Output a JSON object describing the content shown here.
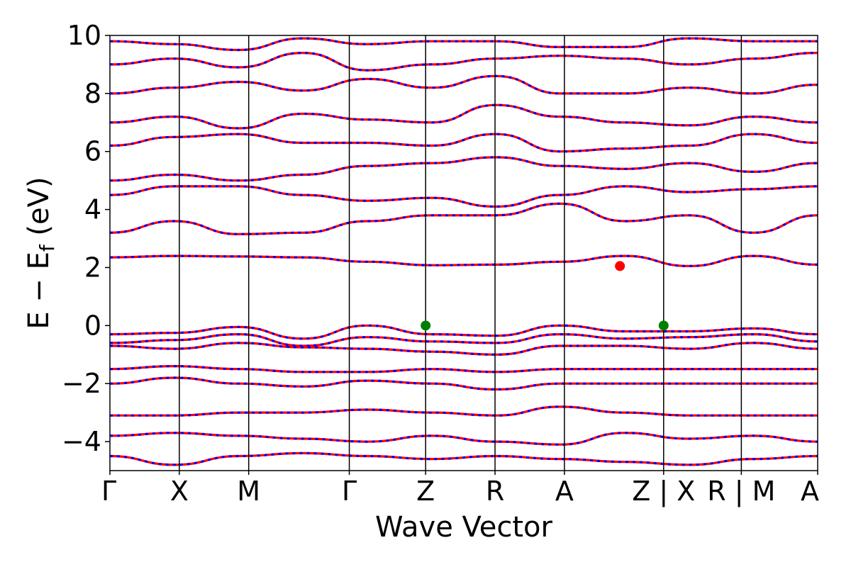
{
  "chart_data": {
    "type": "line",
    "xlabel": "Wave Vector",
    "ylabel_main": "E − E",
    "ylabel_sub": "f",
    "ylabel_unit": " (eV)",
    "ylim": [
      -5,
      10
    ],
    "yticks": [
      -4,
      -2,
      0,
      2,
      4,
      6,
      8,
      10
    ],
    "ytick_labels": [
      "−4",
      "−2",
      "0",
      "2",
      "4",
      "6",
      "8",
      "10"
    ],
    "kpath_positions": [
      0,
      1,
      2,
      3.45,
      4.55,
      5.55,
      6.55,
      7.98,
      9.1,
      10.2
    ],
    "kpath_labels": [
      "Γ",
      "X",
      "M",
      "Γ",
      "Z",
      "R",
      "A",
      "Z | X",
      "R | M",
      "A"
    ],
    "series_colors": {
      "spin_up": "#ff0000",
      "spin_down": "#0000ff",
      "vbm_marker": "#008000",
      "cbm_marker": "#ff0000"
    },
    "series": [
      {
        "values": [
          2.35,
          2.4,
          2.38,
          2.35,
          2.2,
          2.08,
          2.1,
          2.2,
          2.4,
          2.05,
          2.4,
          2.1
        ]
      },
      {
        "values": [
          -0.3,
          -0.25,
          -0.05,
          -0.45,
          0.0,
          -0.3,
          -0.35,
          0.0,
          -0.2,
          -0.2,
          -0.1,
          -0.3
        ]
      },
      {
        "values": [
          -0.6,
          -0.5,
          -0.3,
          -0.7,
          -0.4,
          -0.55,
          -0.6,
          -0.3,
          -0.45,
          -0.4,
          -0.3,
          -0.55
        ]
      },
      {
        "values": [
          -0.7,
          -0.8,
          -0.6,
          -0.75,
          -0.8,
          -0.9,
          -1.0,
          -0.7,
          -0.7,
          -0.8,
          -0.6,
          -0.8
        ]
      },
      {
        "values": [
          -1.5,
          -1.4,
          -1.5,
          -1.6,
          -1.6,
          -1.5,
          -1.6,
          -1.5,
          -1.5,
          -1.5,
          -1.5,
          -1.5
        ]
      },
      {
        "values": [
          -2.0,
          -1.8,
          -2.0,
          -2.1,
          -1.9,
          -2.0,
          -2.2,
          -2.0,
          -2.0,
          -2.0,
          -2.0,
          -2.0
        ]
      },
      {
        "values": [
          -3.1,
          -3.1,
          -3.0,
          -3.0,
          -2.9,
          -3.0,
          -3.1,
          -2.8,
          -3.0,
          -3.1,
          -3.1,
          -3.1
        ]
      },
      {
        "values": [
          -3.8,
          -3.7,
          -3.8,
          -3.9,
          -4.0,
          -3.8,
          -4.0,
          -4.1,
          -3.7,
          -3.9,
          -3.8,
          -4.0
        ]
      },
      {
        "values": [
          -4.5,
          -4.8,
          -4.5,
          -4.4,
          -4.5,
          -4.6,
          -4.5,
          -4.6,
          -4.7,
          -4.8,
          -4.6,
          -4.5
        ]
      },
      {
        "values": [
          3.2,
          3.6,
          3.15,
          3.2,
          3.6,
          3.8,
          3.8,
          4.2,
          3.6,
          3.8,
          3.2,
          3.8
        ]
      },
      {
        "values": [
          4.5,
          4.8,
          4.8,
          4.5,
          4.3,
          4.4,
          4.1,
          4.5,
          4.8,
          4.6,
          4.7,
          4.8
        ]
      },
      {
        "values": [
          5.0,
          5.2,
          5.0,
          5.2,
          5.5,
          5.6,
          5.8,
          5.5,
          5.4,
          5.6,
          5.3,
          5.6
        ]
      },
      {
        "values": [
          6.2,
          6.5,
          6.6,
          6.3,
          6.3,
          6.2,
          6.6,
          6.0,
          6.1,
          6.2,
          6.6,
          6.3
        ]
      },
      {
        "values": [
          7.0,
          7.2,
          6.8,
          7.3,
          7.1,
          7.0,
          7.6,
          7.2,
          7.0,
          6.9,
          7.2,
          7.0
        ]
      },
      {
        "values": [
          8.0,
          8.2,
          8.4,
          8.1,
          8.5,
          8.2,
          8.6,
          8.0,
          8.0,
          8.2,
          8.0,
          8.3
        ]
      },
      {
        "values": [
          9.0,
          9.2,
          8.9,
          9.4,
          8.8,
          9.0,
          9.2,
          9.3,
          9.2,
          9.0,
          9.2,
          9.4
        ]
      },
      {
        "values": [
          9.8,
          9.7,
          9.5,
          9.9,
          9.7,
          9.8,
          9.8,
          9.6,
          9.6,
          9.9,
          9.8,
          9.8
        ]
      }
    ],
    "extrema_markers": [
      {
        "label": "VBM",
        "k": 4.55,
        "energy": 0.0,
        "color": "#008000"
      },
      {
        "label": "VBM",
        "k": 7.98,
        "energy": 0.0,
        "color": "#008000"
      },
      {
        "label": "CBM",
        "k": 7.35,
        "energy": 2.05,
        "color": "#ff0000"
      }
    ]
  }
}
